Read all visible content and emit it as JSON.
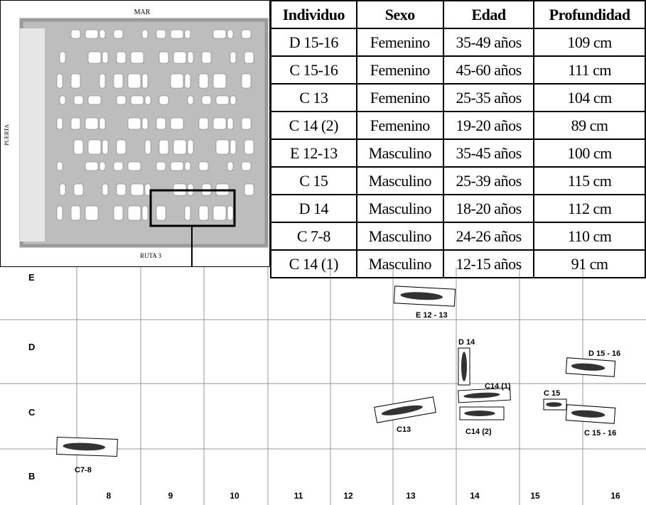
{
  "map": {
    "top_label": "MAR",
    "bottom_label": "RUTA 3",
    "side_label": "PUERTA"
  },
  "table": {
    "header": [
      "Individuo",
      "Sexo",
      "Edad",
      "Profundidad"
    ],
    "rows": [
      [
        "D 15-16",
        "Femenino",
        "35-49 años",
        "109 cm"
      ],
      [
        "C 15-16",
        "Femenino",
        "45-60 años",
        "111 cm"
      ],
      [
        "C 13",
        "Femenino",
        "25-35 años",
        "104 cm"
      ],
      [
        "C 14 (2)",
        "Femenino",
        "19-20 años",
        "89 cm"
      ],
      [
        "E 12-13",
        "Masculino",
        "35-45 años",
        "100 cm"
      ],
      [
        "C 15",
        "Masculino",
        "25-39 años",
        "115 cm"
      ],
      [
        "D 14",
        "Masculino",
        "18-20 años",
        "112 cm"
      ],
      [
        "C 7-8",
        "Masculino",
        "24-26 años",
        "110 cm"
      ],
      [
        "C 14 (1)",
        "Masculino",
        "12-15 años",
        "91 cm"
      ]
    ]
  },
  "grid": {
    "rows": [
      "E",
      "D",
      "C",
      "B"
    ],
    "columns": [
      "8",
      "9",
      "10",
      "11",
      "12",
      "13",
      "14",
      "15",
      "16"
    ],
    "burials": [
      "E 12 - 13",
      "D 14",
      "D 15 - 16",
      "C14 (1)",
      "C 15",
      "C13",
      "C14 (2)",
      "C 15 - 16",
      "C7-8"
    ]
  }
}
